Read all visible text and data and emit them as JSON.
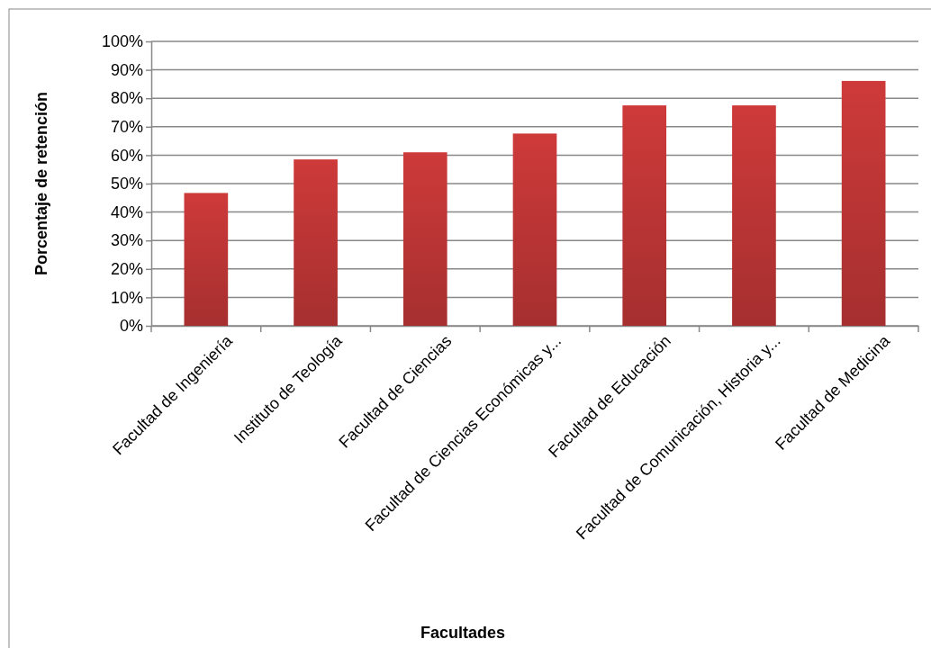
{
  "chart_data": {
    "type": "bar",
    "xlabel": "Facultades",
    "ylabel": "Porcentaje de retención",
    "categories": [
      "Facultad de Ingeniería",
      "Instituto de Teología",
      "Facultad de Ciencias",
      "Facultad de Ciencias Económicas y...",
      "Facultad de Educación",
      "Facultad de Comunicación, Historia y...",
      "Facultad de Medicina"
    ],
    "values": [
      46.7,
      58.5,
      61,
      67.6,
      77.5,
      77.5,
      86.1
    ],
    "color": "#b93434",
    "ylim": [
      0,
      100
    ],
    "yticks": [
      {
        "value": 0,
        "label": "0%"
      },
      {
        "value": 10,
        "label": "10%"
      },
      {
        "value": 20,
        "label": "20%"
      },
      {
        "value": 30,
        "label": "30%"
      },
      {
        "value": 40,
        "label": "40%"
      },
      {
        "value": 50,
        "label": "50%"
      },
      {
        "value": 60,
        "label": "60%"
      },
      {
        "value": 70,
        "label": "70%"
      },
      {
        "value": 80,
        "label": "80%"
      },
      {
        "value": 90,
        "label": "90%"
      },
      {
        "value": 100,
        "label": "100%"
      }
    ],
    "grid": "y"
  }
}
